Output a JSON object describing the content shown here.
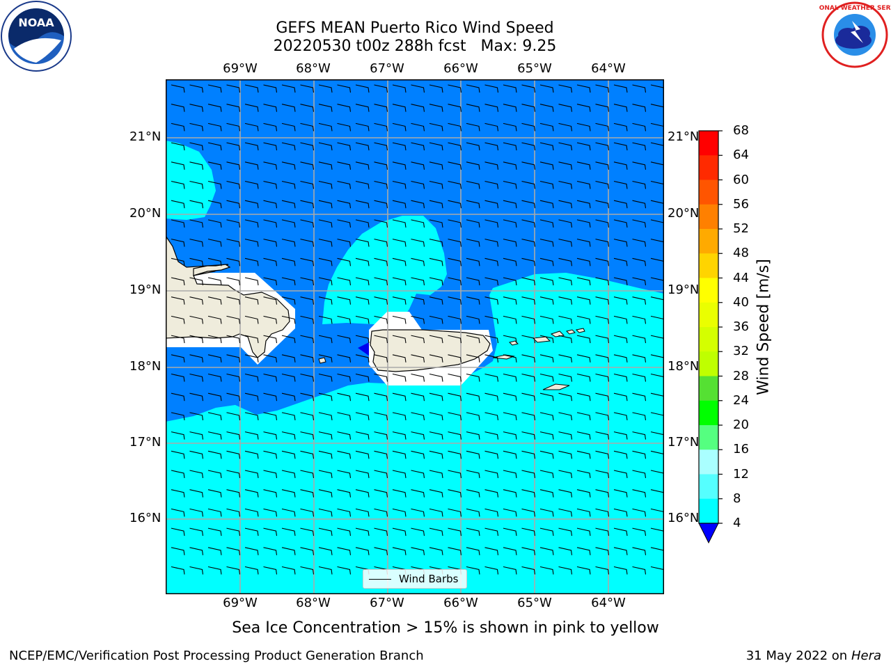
{
  "title": {
    "line1": "GEFS MEAN Puerto Rico Wind Speed",
    "line2": "20220530 t00z 288h fcst   Max: 9.25"
  },
  "logos": {
    "left": {
      "name": "noaa-logo",
      "text": "NOAA"
    },
    "right": {
      "name": "nws-logo",
      "text": "NATIONAL WEATHER SERVICE"
    }
  },
  "map": {
    "lon_labels": [
      "69°W",
      "68°W",
      "67°W",
      "66°W",
      "65°W",
      "64°W"
    ],
    "lat_labels": [
      "21°N",
      "20°N",
      "19°N",
      "18°N",
      "17°N",
      "16°N"
    ],
    "extent": {
      "lon_min": -70.0,
      "lon_max": -63.25,
      "lat_min": 15.0,
      "lat_max": 21.75
    },
    "colors": {
      "land": "#efecdc",
      "sea_4_8": "#0080ff",
      "sea_8_12": "#00ffff",
      "sea_lt4": "#0000ee",
      "gridline": "#aaaaaa"
    },
    "legend_label": "Wind Barbs"
  },
  "colorbar": {
    "label": "Wind Speed [m/s]",
    "ticks": [
      "68",
      "64",
      "60",
      "56",
      "52",
      "48",
      "44",
      "40",
      "36",
      "32",
      "28",
      "24",
      "20",
      "16",
      "12",
      "8",
      "4"
    ],
    "colors": [
      "#ff0000",
      "#ff2a00",
      "#ff5500",
      "#ff8000",
      "#ffaa00",
      "#ffd400",
      "#ffff00",
      "#eaff00",
      "#d4ff00",
      "#bfff00",
      "#55e033",
      "#00ff00",
      "#55ff80",
      "#aaffff",
      "#55ffff",
      "#00ffff",
      "#0080ff"
    ],
    "extend_color": "#0000ff"
  },
  "footnote": "Sea Ice Concentration > 15% is shown in pink to yellow",
  "footer": {
    "left": "NCEP/EMC/Verification Post Processing Product Generation Branch",
    "right_date": "31 May 2022 on",
    "right_host": "Hera"
  }
}
